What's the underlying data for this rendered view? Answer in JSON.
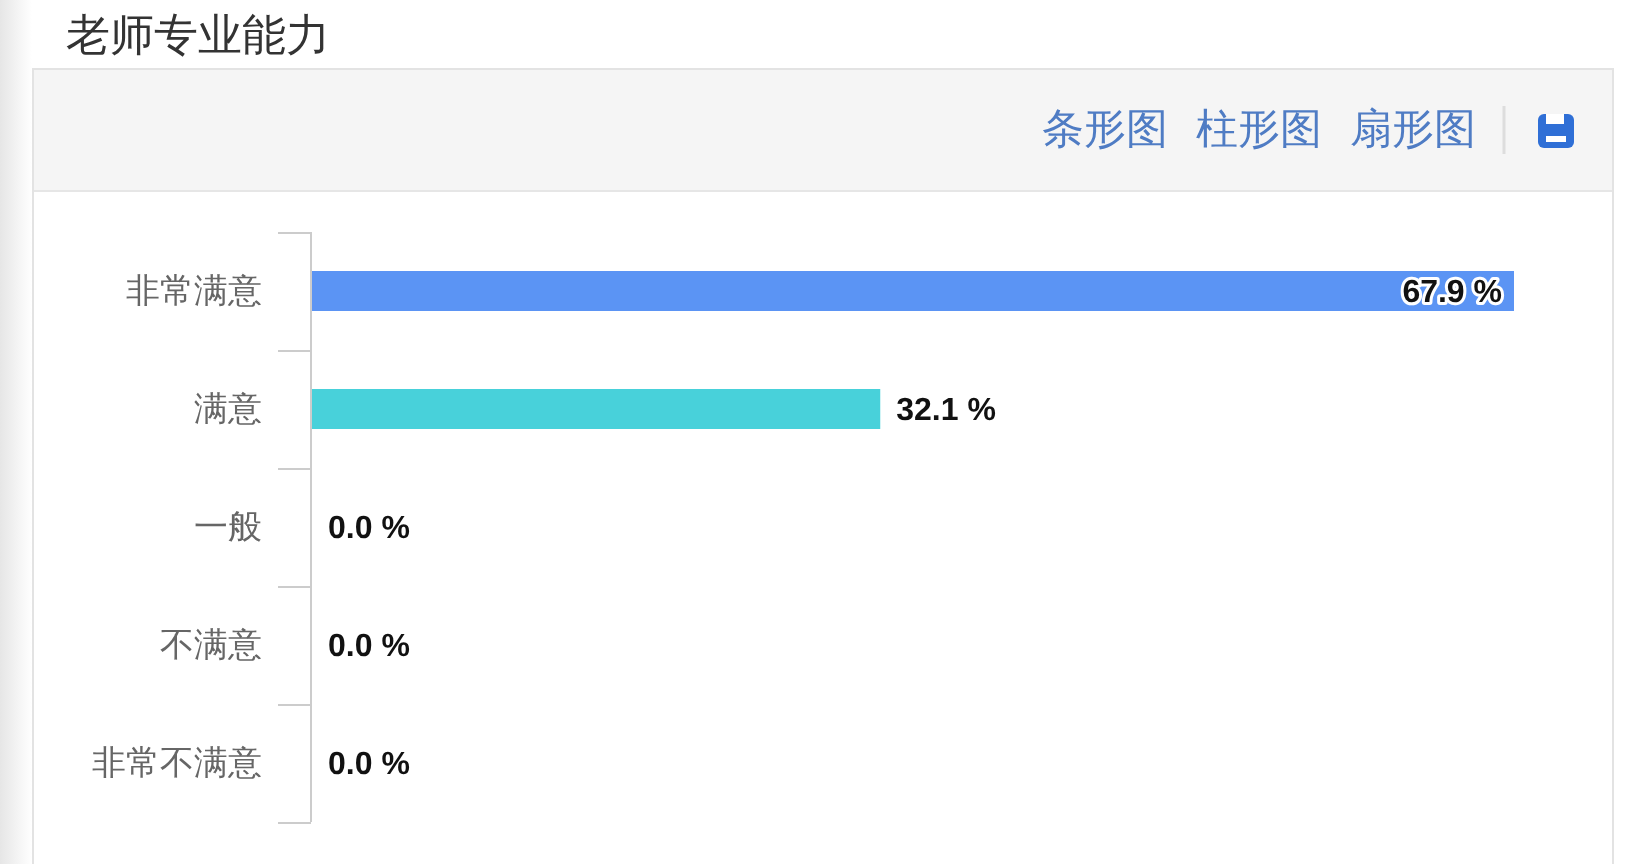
{
  "chart_data": {
    "type": "bar",
    "title": "老师专业能力",
    "orientation": "horizontal",
    "categories": [
      "非常满意",
      "满意",
      "一般",
      "不满意",
      "非常不满意"
    ],
    "values": [
      67.9,
      32.1,
      0,
      0,
      0
    ],
    "colors": [
      "#5b94f4",
      "#48d1da",
      "#5b94f4",
      "#5b94f4",
      "#5b94f4"
    ],
    "value_labels": [
      "67.9 %",
      "32.1 %",
      "0.0 %",
      "0.0 %",
      "0.0 %"
    ],
    "tick_labels": "y",
    "annotations": [
      "条形图",
      "柱形图",
      "扇形图"
    ]
  }
}
